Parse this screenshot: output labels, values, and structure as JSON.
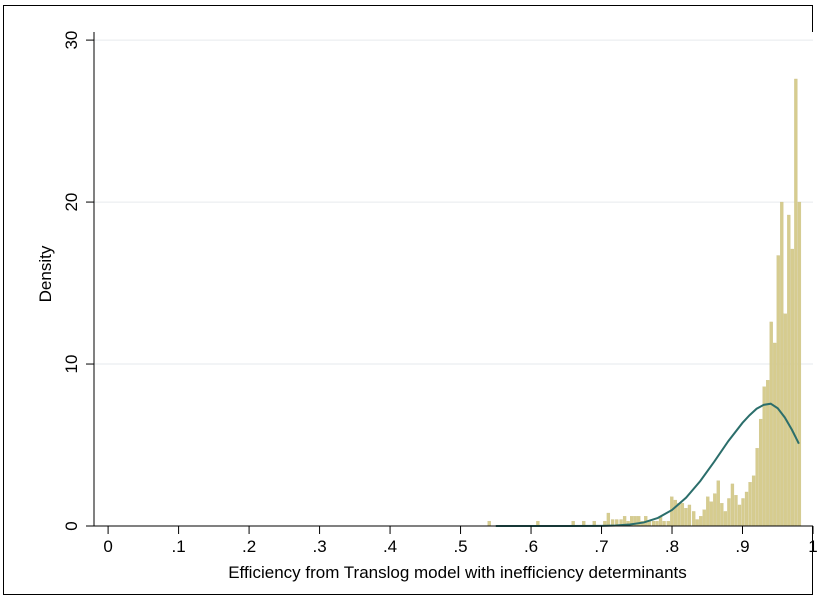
{
  "chart_data": {
    "type": "bar",
    "title": "",
    "xlabel": "Efficiency from Translog model with inefficiency determinants",
    "ylabel": "Density",
    "xlim": [
      -0.02,
      1.0
    ],
    "ylim": [
      0,
      30.5
    ],
    "x_ticks": [
      0,
      0.1,
      0.2,
      0.3,
      0.4,
      0.5,
      0.6,
      0.7,
      0.8,
      0.9,
      1
    ],
    "x_tick_labels": [
      "0",
      ".1",
      ".2",
      ".3",
      ".4",
      ".5",
      ".6",
      ".7",
      ".8",
      ".9",
      "1"
    ],
    "y_ticks": [
      0,
      10,
      20,
      30
    ],
    "y_tick_labels": [
      "0",
      "10",
      "20",
      "30"
    ],
    "grid": true,
    "bin_width": 0.0048,
    "series": [
      {
        "kind": "histogram",
        "color": "#d6cc8f",
        "bins": [
          [
            0.541,
            0.3
          ],
          [
            0.61,
            0.3
          ],
          [
            0.66,
            0.3
          ],
          [
            0.675,
            0.3
          ],
          [
            0.69,
            0.3
          ],
          [
            0.705,
            0.3
          ],
          [
            0.71,
            0.8
          ],
          [
            0.716,
            0.4
          ],
          [
            0.722,
            0.4
          ],
          [
            0.728,
            0.4
          ],
          [
            0.733,
            0.6
          ],
          [
            0.738,
            0.3
          ],
          [
            0.743,
            0.6
          ],
          [
            0.748,
            0.6
          ],
          [
            0.753,
            0.6
          ],
          [
            0.758,
            0.3
          ],
          [
            0.763,
            0.6
          ],
          [
            0.768,
            0.3
          ],
          [
            0.774,
            0.3
          ],
          [
            0.779,
            0.3
          ],
          [
            0.784,
            0.6
          ],
          [
            0.789,
            0.3
          ],
          [
            0.795,
            0.3
          ],
          [
            0.8,
            1.8
          ],
          [
            0.805,
            1.6
          ],
          [
            0.81,
            1.4
          ],
          [
            0.815,
            1.4
          ],
          [
            0.82,
            1.1
          ],
          [
            0.825,
            1.3
          ],
          [
            0.831,
            0.9
          ],
          [
            0.836,
            0.4
          ],
          [
            0.841,
            0.6
          ],
          [
            0.846,
            1.0
          ],
          [
            0.851,
            1.8
          ],
          [
            0.856,
            1.5
          ],
          [
            0.861,
            2.0
          ],
          [
            0.866,
            2.8
          ],
          [
            0.871,
            1.4
          ],
          [
            0.876,
            0.9
          ],
          [
            0.881,
            1.7
          ],
          [
            0.886,
            2.6
          ],
          [
            0.891,
            1.9
          ],
          [
            0.896,
            1.3
          ],
          [
            0.901,
            1.7
          ],
          [
            0.906,
            2.1
          ],
          [
            0.911,
            2.7
          ],
          [
            0.916,
            3.1
          ],
          [
            0.921,
            4.8
          ],
          [
            0.926,
            6.6
          ],
          [
            0.931,
            8.6
          ],
          [
            0.936,
            9.0
          ],
          [
            0.941,
            12.6
          ],
          [
            0.946,
            11.3
          ],
          [
            0.951,
            16.7
          ],
          [
            0.956,
            20.0
          ],
          [
            0.961,
            13.1
          ],
          [
            0.966,
            19.2
          ],
          [
            0.971,
            17.1
          ],
          [
            0.976,
            27.6
          ],
          [
            0.981,
            20.0
          ]
        ]
      },
      {
        "kind": "density-curve",
        "color": "#2b6e6b",
        "x": [
          0.55,
          0.6,
          0.65,
          0.7,
          0.72,
          0.74,
          0.76,
          0.78,
          0.8,
          0.82,
          0.84,
          0.86,
          0.88,
          0.9,
          0.91,
          0.92,
          0.93,
          0.94,
          0.95,
          0.96,
          0.97,
          0.98
        ],
        "y": [
          0,
          0,
          0,
          0.01,
          0.03,
          0.09,
          0.22,
          0.5,
          0.99,
          1.75,
          2.77,
          3.98,
          5.25,
          6.37,
          6.84,
          7.24,
          7.48,
          7.55,
          7.27,
          6.7,
          5.95,
          5.08
        ]
      }
    ]
  }
}
